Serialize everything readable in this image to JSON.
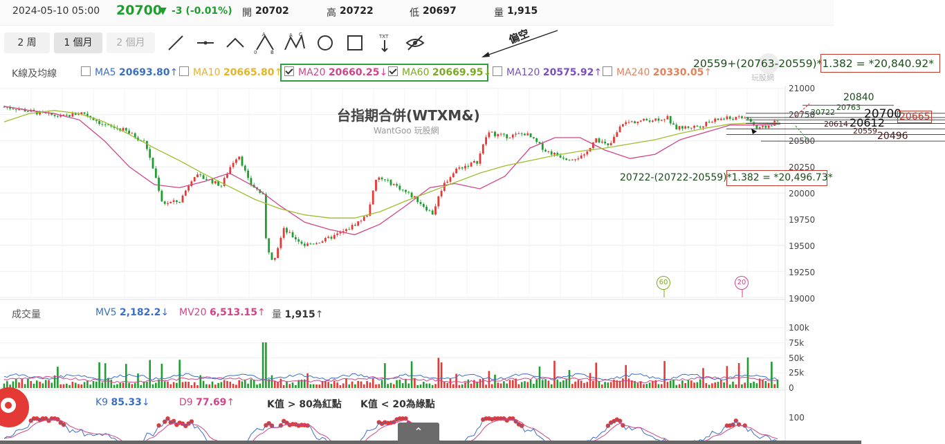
{
  "quote": {
    "datetime": "2024-05-10 05:00",
    "price": "20700",
    "change": "-3 (-0.01%)",
    "open_label": "開",
    "open": "20702",
    "high_label": "高",
    "high": "20722",
    "low_label": "低",
    "low": "20697",
    "volume_label": "量",
    "volume": "1,915"
  },
  "toolbar": {
    "period_2w": "2 周",
    "period_1m": "1 個月",
    "period_2m": "2 個月",
    "tool_icons": [
      "line-tool-icon",
      "hline-tool-icon",
      "angle-tool-icon",
      "abc-pattern-icon",
      "abcd-pattern-icon",
      "circle-tool-icon",
      "rectangle-tool-icon",
      "text-tool-icon",
      "hide-drawings-icon"
    ],
    "text_tool_label": "TXT"
  },
  "note": {
    "text": "偏空"
  },
  "ma_row": {
    "label": "K線及均線",
    "items": [
      {
        "name": "MA5",
        "value": "20693.80",
        "dir": "↑",
        "checked": false,
        "color": "#3a6fc4"
      },
      {
        "name": "MA10",
        "value": "20665.80",
        "dir": "↑",
        "checked": false,
        "color": "#e6b422"
      },
      {
        "name": "MA20",
        "value": "20660.25",
        "dir": "↓",
        "checked": true,
        "color": "#d0458a"
      },
      {
        "name": "MA60",
        "value": "20669.95",
        "dir": "↓",
        "checked": true,
        "color": "#7aab1e"
      },
      {
        "name": "MA120",
        "value": "20575.92",
        "dir": "↑",
        "checked": false,
        "color": "#7b4fc4"
      },
      {
        "name": "MA240",
        "value": "20330.05",
        "dir": "↑",
        "checked": false,
        "color": "#e8805a"
      }
    ]
  },
  "chart_title": "台指期合併(WTXM&)",
  "watermark": "WantGoo 玩股網",
  "logo_text": "玩股網",
  "price_axis": [
    "21000",
    "20750",
    "20500",
    "20250",
    "20000",
    "19750",
    "19500",
    "19250",
    "19000"
  ],
  "annotations": {
    "upper_formula": "20559+(20763-20559)*1.382 = *20,840.92*",
    "lower_formula": "20722-(20722-20559)*1.382 = *20,496.73*",
    "lvl_20840": "20840",
    "lvl_20763": "20763",
    "lvl_20722": "20722",
    "lvl_20700": "20700",
    "lvl_20612": "20612",
    "lvl_20665": "20665",
    "lvl_20614": "20614",
    "lvl_20559": "20559",
    "lvl_20496": "20496",
    "marker_60": "60",
    "marker_20": "20"
  },
  "volume_panel": {
    "label": "成交量",
    "mv5_name": "MV5",
    "mv5": "2,182.2",
    "mv5_dir": "↓",
    "mv20_name": "MV20",
    "mv20": "6,513.15",
    "mv20_dir": "↑",
    "vol_name": "量",
    "vol": "1,915",
    "vol_dir": "↑",
    "axis": [
      "100k",
      "75k",
      "50k",
      "25k",
      "0"
    ]
  },
  "kd_panel": {
    "k_name": "K9",
    "k": "85.33",
    "k_dir": "↓",
    "d_name": "D9",
    "d": "77.69",
    "d_dir": "↑",
    "note1": "K值 > 80為紅點",
    "note2": "K值 < 20為綠點",
    "axis_top": "100"
  },
  "colors": {
    "up": "#e53935",
    "down": "#1f9d2f",
    "accent_green": "#1a8a2a",
    "box_green": "#2e9e3e"
  },
  "chart_data": {
    "type": "line",
    "title": "台指期合併(WTXM&)",
    "ylim": [
      19000,
      21000
    ],
    "series": [
      {
        "name": "MA20",
        "values": [
          20830,
          20790,
          20760,
          20700,
          20500,
          20250,
          20080,
          20050,
          20110,
          20190,
          20060,
          19880,
          19720,
          19650,
          19600,
          19700,
          19870,
          20050,
          20090,
          20040,
          20160,
          20430,
          20530,
          20530,
          20410,
          20330,
          20370,
          20510,
          20580,
          20650,
          20650,
          20660
        ]
      },
      {
        "name": "MA60",
        "values": [
          20680,
          20760,
          20790,
          20760,
          20680,
          20560,
          20430,
          20310,
          20180,
          20060,
          19940,
          19850,
          19790,
          19760,
          19760,
          19820,
          19920,
          20010,
          20100,
          20190,
          20260,
          20310,
          20360,
          20400,
          20430,
          20470,
          20510,
          20570,
          20620,
          20660,
          20670,
          20670
        ]
      }
    ]
  }
}
